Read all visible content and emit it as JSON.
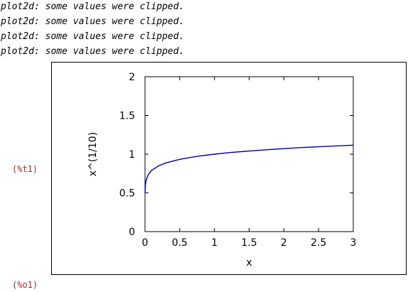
{
  "console": {
    "warnings": [
      "plot2d: some values were clipped.",
      "plot2d: some values were clipped.",
      "plot2d: some values were clipped.",
      "plot2d: some values were clipped."
    ],
    "input_label": "(%t1)",
    "output_label": "(%o1)",
    "label_color": "#a52a2a"
  },
  "chart_data": {
    "type": "line",
    "function": "x^(1/10)",
    "xlabel": "x",
    "ylabel": "x^(1/10)",
    "xlim": [
      0,
      3
    ],
    "ylim": [
      0,
      2
    ],
    "x_ticks": [
      "0",
      "0.5",
      "1",
      "1.5",
      "2",
      "2.5",
      "3"
    ],
    "y_ticks": [
      "0",
      "0.5",
      "1",
      "1.5",
      "2"
    ],
    "grid": false,
    "line_color": "#0000a0",
    "series": [
      {
        "x": [
          0.001,
          0.005,
          0.01,
          0.02,
          0.05,
          0.1,
          0.2,
          0.3,
          0.5,
          0.75,
          1,
          1.25,
          1.5,
          1.75,
          2,
          2.25,
          2.5,
          2.75,
          3
        ],
        "values": [
          0.501,
          0.589,
          0.631,
          0.676,
          0.741,
          0.794,
          0.851,
          0.887,
          0.933,
          0.972,
          1.0,
          1.023,
          1.041,
          1.057,
          1.072,
          1.085,
          1.096,
          1.106,
          1.116
        ]
      }
    ]
  }
}
